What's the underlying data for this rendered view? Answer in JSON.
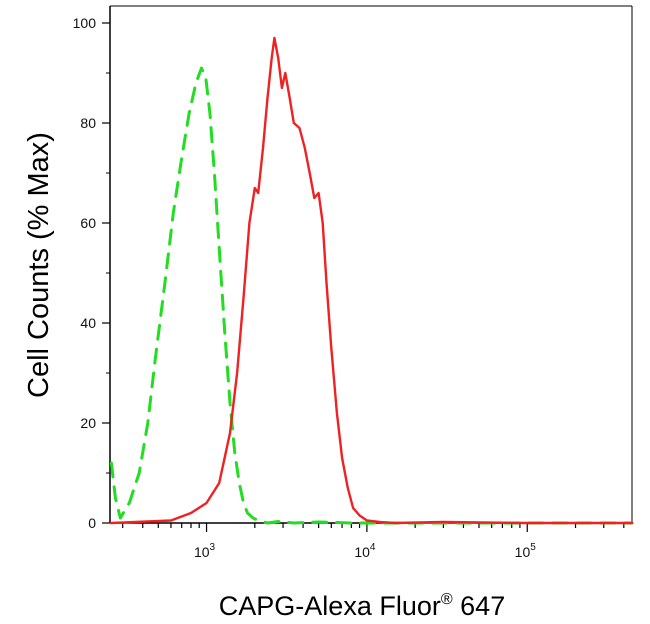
{
  "chart_data": {
    "type": "line",
    "title": "",
    "xlabel": "CAPG-Alexa Fluor",
    "xlabel_superscript": "®",
    "xlabel_suffix": " 647",
    "ylabel": "Cell Counts (% Max)",
    "x_scale": "log",
    "xlim": [
      250,
      450000
    ],
    "ylim": [
      0,
      100
    ],
    "grid": false,
    "legend": "none",
    "x_ticks": [
      {
        "value": 1000,
        "base": "10",
        "exp": "3"
      },
      {
        "value": 10000,
        "base": "10",
        "exp": "4"
      },
      {
        "value": 100000,
        "base": "10",
        "exp": "5"
      }
    ],
    "y_ticks": [
      "0",
      "20",
      "40",
      "60",
      "80",
      "100"
    ],
    "series": [
      {
        "color": "#22dd22",
        "dash": "dashed",
        "x": [
          255,
          270,
          290,
          330,
          380,
          430,
          480,
          550,
          620,
          700,
          780,
          860,
          930,
          990,
          1050,
          1120,
          1200,
          1300,
          1400,
          1500,
          1600,
          1700,
          1800,
          1950,
          2100,
          2400,
          2800,
          3500,
          5000,
          8000,
          20000,
          100000,
          450000
        ],
        "y": [
          12,
          5,
          1,
          4,
          10,
          20,
          33,
          48,
          62,
          73,
          82,
          88,
          91,
          89,
          82,
          70,
          55,
          38,
          24,
          14,
          8,
          4,
          2,
          1,
          0.5,
          0,
          0.3,
          0,
          0.2,
          0,
          0,
          0,
          0
        ]
      },
      {
        "color": "#ee2222",
        "dash": "solid",
        "x": [
          250,
          600,
          800,
          1000,
          1200,
          1400,
          1550,
          1700,
          1850,
          2000,
          2100,
          2250,
          2400,
          2550,
          2650,
          2800,
          2950,
          3100,
          3300,
          3500,
          3800,
          4100,
          4400,
          4700,
          5000,
          5300,
          5600,
          6000,
          6500,
          7000,
          7600,
          8200,
          9000,
          10000,
          12000,
          15000,
          30000,
          100000,
          450000
        ],
        "y": [
          0,
          0.5,
          2,
          4,
          8,
          18,
          30,
          45,
          60,
          67,
          66,
          75,
          85,
          93,
          97,
          93,
          87,
          90,
          85,
          80,
          79,
          75,
          70,
          65,
          66,
          60,
          48,
          35,
          22,
          13,
          7,
          3,
          1.5,
          0.5,
          0.2,
          0,
          0.2,
          0,
          0
        ]
      }
    ]
  }
}
